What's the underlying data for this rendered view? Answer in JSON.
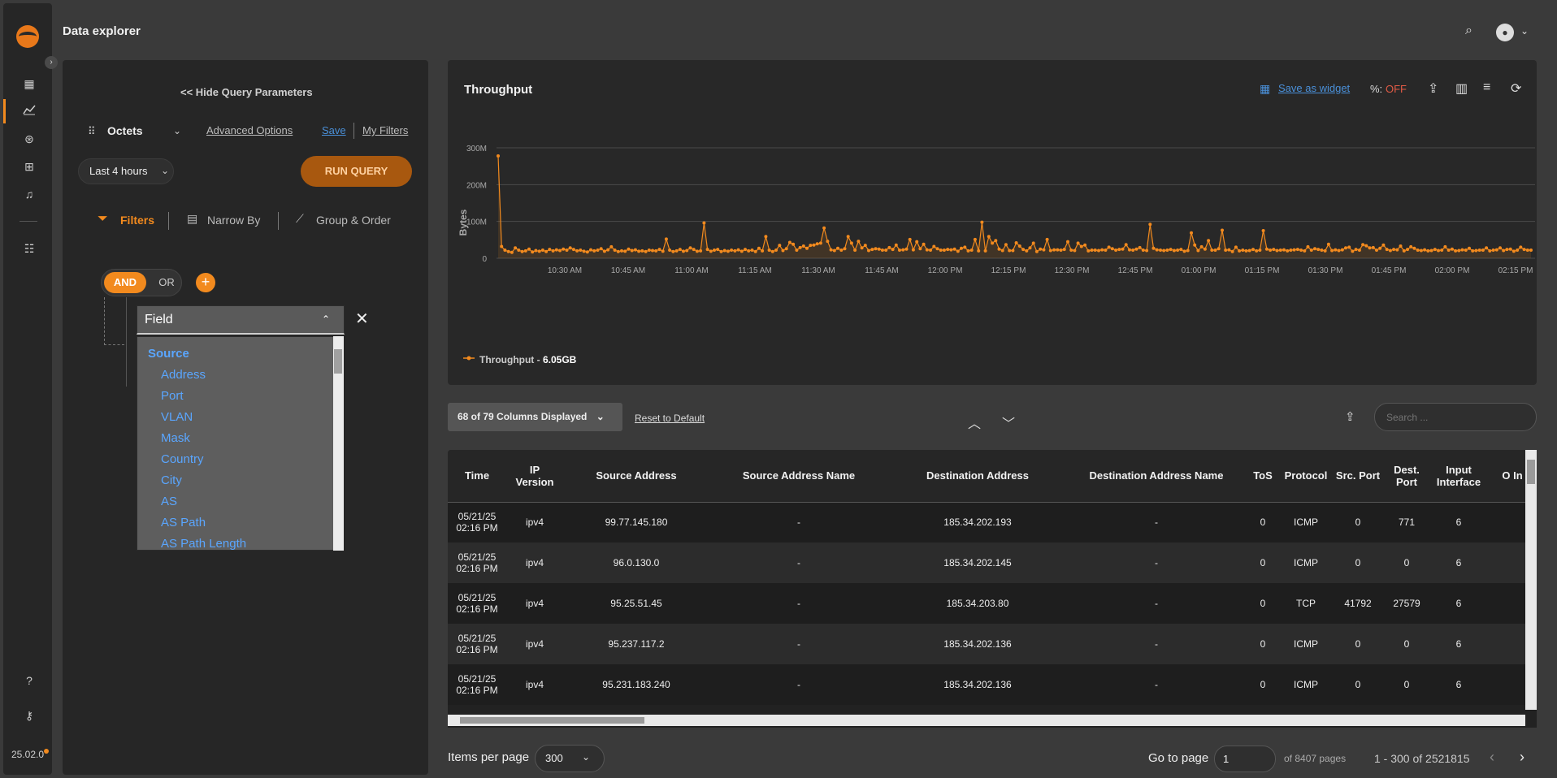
{
  "app": {
    "title": "Data explorer",
    "version": "25.02.0"
  },
  "query": {
    "hide_label": "<< Hide Query Parameters",
    "metric": "Octets",
    "advanced": "Advanced Options",
    "save": "Save",
    "my_filters": "My Filters",
    "time_range": "Last 4 hours",
    "run": "RUN QUERY",
    "tabs": {
      "filters": "Filters",
      "narrow": "Narrow By",
      "group": "Group & Order"
    },
    "and": "AND",
    "or": "OR",
    "field_placeholder": "Field",
    "field_options": {
      "group": "Source",
      "items": [
        "Address",
        "Port",
        "VLAN",
        "Mask",
        "Country",
        "City",
        "AS",
        "AS Path",
        "AS Path Length"
      ]
    }
  },
  "chart": {
    "title": "Throughput",
    "save_widget": "Save as widget",
    "pct_label": "%:",
    "pct_value": "OFF",
    "legend_name": "Throughput",
    "legend_total": "6.05GB"
  },
  "chart_data": {
    "type": "line",
    "title": "Throughput",
    "ylabel": "Bytes",
    "yticks": [
      "0",
      "100M",
      "200M",
      "300M"
    ],
    "ylim": [
      0,
      300
    ],
    "y_units": "M",
    "xticks": [
      "10:30 AM",
      "10:45 AM",
      "11:00 AM",
      "11:15 AM",
      "11:30 AM",
      "11:45 AM",
      "12:00 PM",
      "12:15 PM",
      "12:30 PM",
      "12:45 PM",
      "01:00 PM",
      "01:15 PM",
      "01:30 PM",
      "01:45 PM",
      "02:00 PM",
      "02:15 PM"
    ],
    "series": [
      {
        "name": "Throughput",
        "color": "#f28a1e",
        "values": [
          278,
          32,
          22,
          18,
          16,
          28,
          22,
          18,
          20,
          25,
          17,
          21,
          19,
          22,
          18,
          24,
          20,
          23,
          21,
          25,
          22,
          28,
          24,
          20,
          22,
          19,
          17,
          23,
          20,
          22,
          26,
          19,
          23,
          31,
          22,
          18,
          20,
          19,
          25,
          21,
          23,
          19,
          20,
          18,
          22,
          21,
          20,
          24,
          19,
          52,
          22,
          18,
          20,
          24,
          19,
          21,
          28,
          24,
          19,
          20,
          96,
          24,
          19,
          22,
          24,
          18,
          21,
          19,
          22,
          20,
          23,
          19,
          24,
          20,
          22,
          18,
          27,
          20,
          59,
          22,
          18,
          22,
          35,
          21,
          26,
          43,
          38,
          22,
          29,
          33,
          27,
          35,
          36,
          39,
          41,
          82,
          46,
          23,
          21,
          27,
          22,
          26,
          59,
          41,
          22,
          46,
          28,
          35,
          21,
          24,
          26,
          25,
          22,
          22,
          29,
          24,
          36,
          22,
          23,
          25,
          51,
          23,
          45,
          26,
          38,
          23,
          22,
          32,
          26,
          22,
          22,
          24,
          23,
          25,
          19,
          27,
          30,
          20,
          22,
          51,
          20,
          98,
          20,
          59,
          41,
          48,
          25,
          21,
          37,
          21,
          21,
          42,
          33,
          24,
          20,
          28,
          41,
          18,
          25,
          23,
          51,
          21,
          23,
          23,
          22,
          24,
          45,
          22,
          21,
          41,
          32,
          36,
          20,
          22,
          22,
          21,
          23,
          22,
          30,
          26,
          22,
          24,
          25,
          37,
          23,
          22,
          25,
          29,
          22,
          21,
          92,
          27,
          23,
          22,
          21,
          22,
          24,
          21,
          22,
          24,
          19,
          21,
          69,
          36,
          21,
          31,
          25,
          48,
          22,
          22,
          26,
          76,
          22,
          23,
          18,
          30,
          20,
          22,
          20,
          21,
          24,
          20,
          22,
          75,
          25,
          22,
          24,
          21,
          22,
          23,
          20,
          22,
          23,
          24,
          22,
          20,
          31,
          22,
          26,
          24,
          22,
          20,
          38,
          21,
          23,
          21,
          23,
          28,
          30,
          19,
          24,
          22,
          37,
          34,
          28,
          29,
          22,
          27,
          36,
          24,
          21,
          24,
          23,
          33,
          20,
          24,
          31,
          27,
          22,
          21,
          23,
          20,
          21,
          24,
          21,
          22,
          31,
          22,
          25,
          20,
          21,
          23,
          22,
          27,
          20,
          21,
          22,
          22,
          28,
          20,
          22,
          23,
          28,
          21,
          24,
          25,
          19,
          22,
          30,
          24,
          22,
          22
        ]
      }
    ],
    "grid": true
  },
  "table": {
    "columns_label": "68 of 79 Columns Displayed",
    "reset": "Reset to Default",
    "search_placeholder": "Search ...",
    "headers": [
      "Time",
      "IP Version",
      "Source Address",
      "Source Address Name",
      "Destination Address",
      "Destination Address Name",
      "ToS",
      "Protocol",
      "Src. Port",
      "Dest. Port",
      "Input Interface",
      "O In"
    ],
    "rows": [
      [
        "05/21/25 02:16 PM",
        "ipv4",
        "99.77.145.180",
        "-",
        "185.34.202.193",
        "-",
        "0",
        "ICMP",
        "0",
        "771",
        "6",
        ""
      ],
      [
        "05/21/25 02:16 PM",
        "ipv4",
        "96.0.130.0",
        "-",
        "185.34.202.145",
        "-",
        "0",
        "ICMP",
        "0",
        "0",
        "6",
        ""
      ],
      [
        "05/21/25 02:16 PM",
        "ipv4",
        "95.25.51.45",
        "-",
        "185.34.203.80",
        "-",
        "0",
        "TCP",
        "41792",
        "27579",
        "6",
        ""
      ],
      [
        "05/21/25 02:16 PM",
        "ipv4",
        "95.237.117.2",
        "-",
        "185.34.202.136",
        "-",
        "0",
        "ICMP",
        "0",
        "0",
        "6",
        ""
      ],
      [
        "05/21/25 02:16 PM",
        "ipv4",
        "95.231.183.240",
        "-",
        "185.34.202.136",
        "-",
        "0",
        "ICMP",
        "0",
        "0",
        "6",
        ""
      ]
    ]
  },
  "pagination": {
    "items_label": "Items per page",
    "items_value": "300",
    "goto_label": "Go to page",
    "goto_value": "1",
    "of_pages": "of 8407 pages",
    "range": "1 - 300 of 2521815"
  },
  "colors": {
    "accent": "#f28a1e",
    "link": "#4a90d9",
    "off": "#e05a45"
  }
}
